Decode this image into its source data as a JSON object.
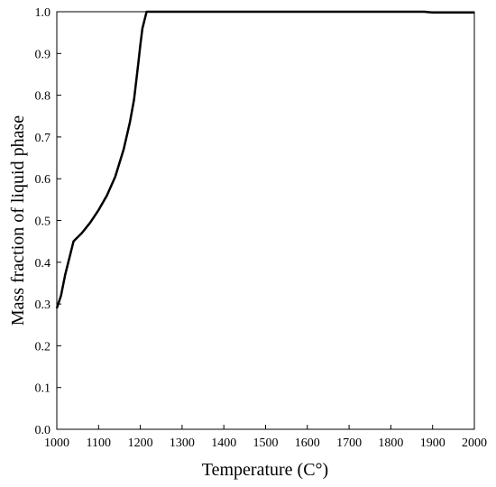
{
  "chart_data": {
    "type": "line",
    "xlabel": "Temperature (C°)",
    "ylabel": "Mass fraction of liquid phase",
    "xlim": [
      1000,
      2000
    ],
    "ylim": [
      0,
      1.0
    ],
    "x_ticks": [
      "1000",
      "1100",
      "1200",
      "1300",
      "1400",
      "1500",
      "1600",
      "1700",
      "1800",
      "1900",
      "2000"
    ],
    "y_ticks": [
      "0.0",
      "0.1",
      "0.2",
      "0.3",
      "0.4",
      "0.5",
      "0.6",
      "0.7",
      "0.8",
      "0.9",
      "1.0"
    ],
    "grid": false,
    "series": [
      {
        "color": "#000000",
        "x": [
          1000,
          1010,
          1020,
          1030,
          1040,
          1060,
          1080,
          1100,
          1120,
          1140,
          1160,
          1175,
          1185,
          1195,
          1200,
          1205,
          1210,
          1215,
          1300,
          1500,
          1700,
          1880,
          1900,
          2000
        ],
        "y": [
          0.29,
          0.32,
          0.37,
          0.41,
          0.45,
          0.47,
          0.495,
          0.525,
          0.56,
          0.605,
          0.67,
          0.735,
          0.79,
          0.875,
          0.92,
          0.96,
          0.98,
          1.0,
          1.0,
          1.0,
          1.0,
          1.0,
          0.998,
          0.998
        ]
      }
    ]
  }
}
